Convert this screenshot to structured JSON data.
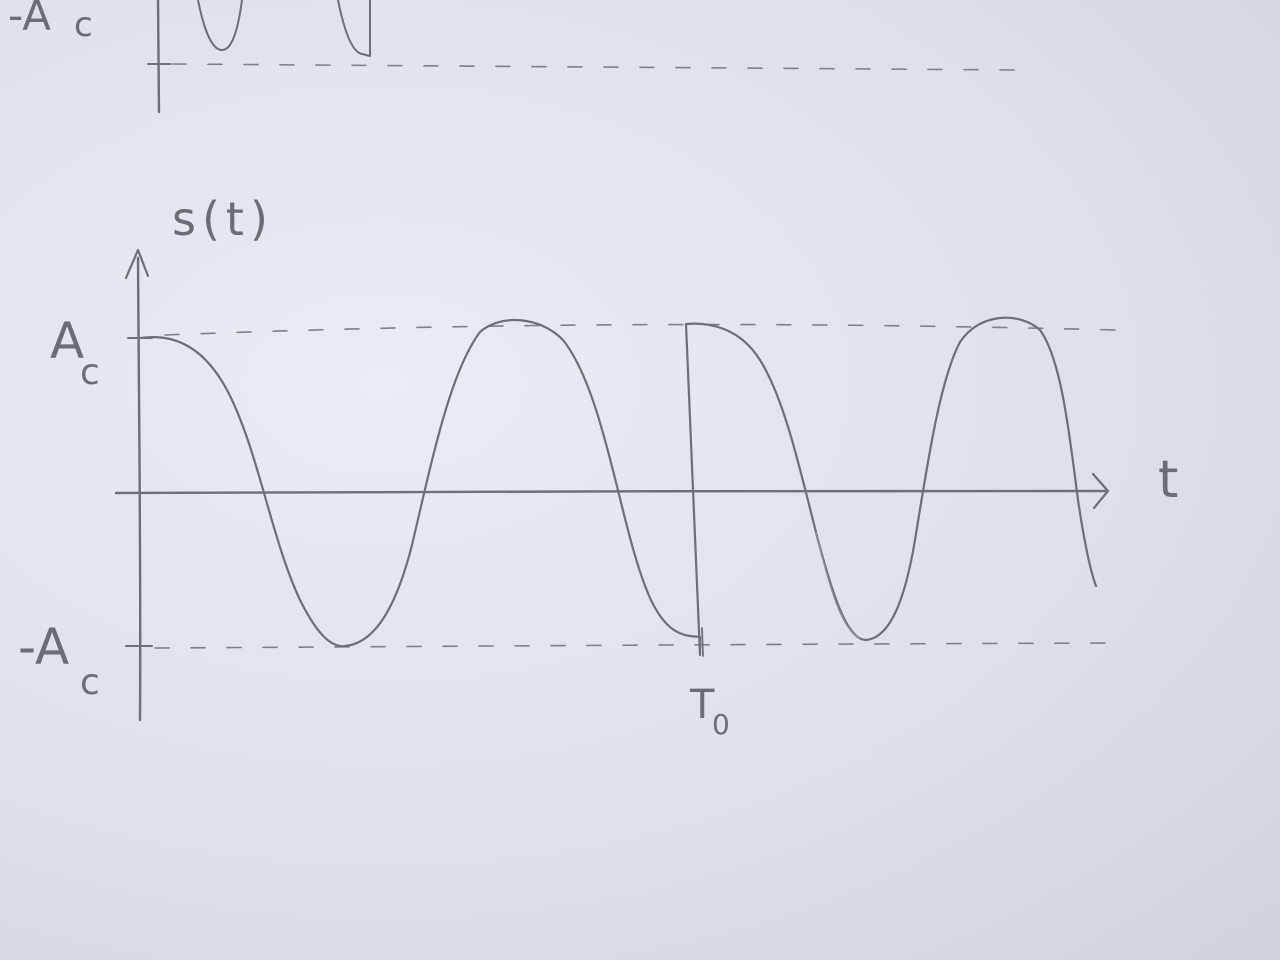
{
  "top_figure": {
    "neg_amplitude_label": "-A",
    "neg_amplitude_subscript": "c"
  },
  "main_figure": {
    "y_axis_label": "s(t)",
    "x_axis_label": "t",
    "amplitude_label": "A",
    "amplitude_subscript": "c",
    "neg_amplitude_label": "-A",
    "neg_amplitude_subscript": "c",
    "phase_jump_label": "T",
    "phase_jump_subscript": "0"
  },
  "colors": {
    "pencil": "#6c6f75",
    "paper": "#e3e6ec"
  }
}
